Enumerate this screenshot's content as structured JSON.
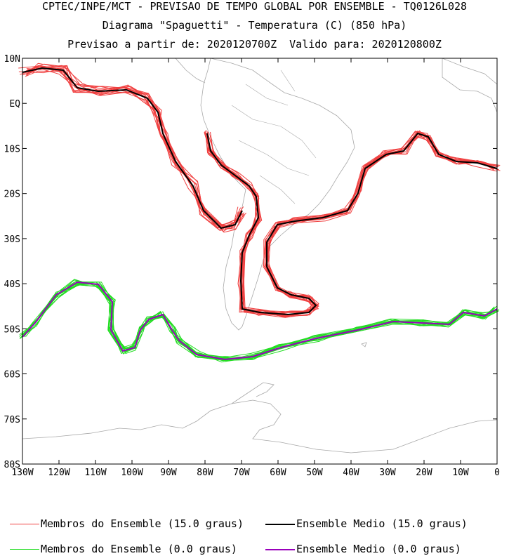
{
  "title": {
    "line1": "CPTEC/INPE/MCT - PREVISAO DE TEMPO GLOBAL POR ENSEMBLE - TQ0126L028",
    "line2": "Diagrama \"Spaguetti\" - Temperatura (C) (850 hPa)",
    "line3": "Previsao a partir de: 2020120700Z  Valido para: 2020120800Z"
  },
  "map": {
    "lat_labels": [
      "10N",
      "EQ",
      "10S",
      "20S",
      "30S",
      "40S",
      "50S",
      "60S",
      "70S",
      "80S"
    ],
    "lat_values": [
      10,
      0,
      -10,
      -20,
      -30,
      -40,
      -50,
      -60,
      -70,
      -80
    ],
    "lon_labels": [
      "130W",
      "120W",
      "110W",
      "100W",
      "90W",
      "80W",
      "70W",
      "60W",
      "50W",
      "40W",
      "30W",
      "20W",
      "10W",
      "0"
    ],
    "lon_values": [
      -130,
      -120,
      -110,
      -100,
      -90,
      -80,
      -70,
      -60,
      -50,
      -40,
      -30,
      -20,
      -10,
      0
    ],
    "lon_range": [
      -130,
      0
    ],
    "lat_range": [
      -80,
      10
    ],
    "colors": {
      "members_15": "#f04040",
      "mean_15": "#000000",
      "members_0": "#22dd22",
      "mean_0": "#9900bb",
      "coast": "#a8a8a8"
    }
  },
  "legend": [
    {
      "label": "Membros do Ensemble (15.0 graus)",
      "color": "#f04040"
    },
    {
      "label": "Ensemble Medio (15.0 graus)",
      "color": "#000000"
    },
    {
      "label": "Membros do Ensemble (0.0 graus)",
      "color": "#22dd22"
    },
    {
      "label": "Ensemble Medio (0.0 graus)",
      "color": "#9900bb"
    }
  ]
}
